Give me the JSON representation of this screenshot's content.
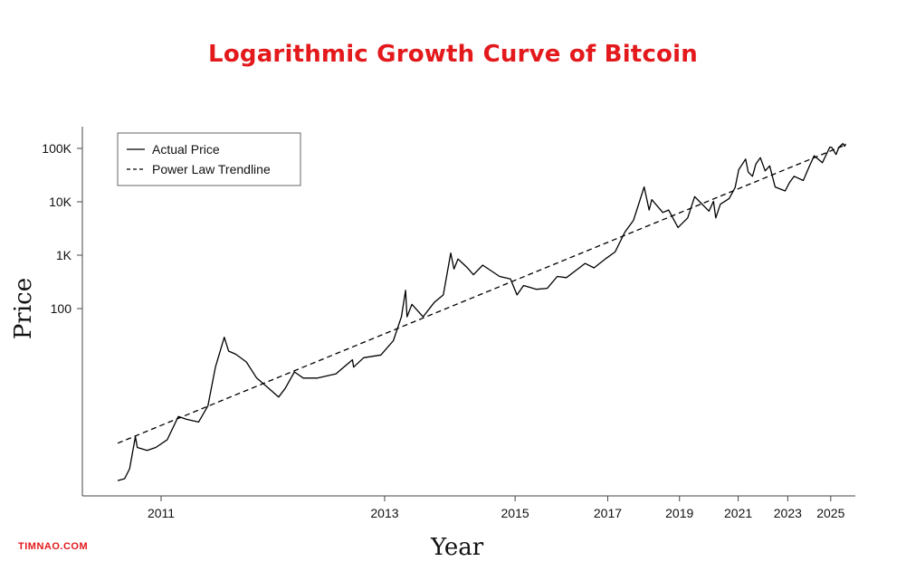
{
  "watermark": "TIMNAO.COM",
  "chart_data": {
    "type": "line",
    "title": "Logarithmic Growth Curve of Bitcoin",
    "xlabel": "Year",
    "ylabel": "Price",
    "x_scale": "log (time since 2009-01-03)",
    "y_scale": "log",
    "x_ticks": [
      "2011",
      "2013",
      "2015",
      "2017",
      "2019",
      "2021",
      "2023",
      "2025"
    ],
    "y_ticks": [
      {
        "label": "100",
        "value": 100
      },
      {
        "label": "1K",
        "value": 1000
      },
      {
        "label": "10K",
        "value": 10000
      },
      {
        "label": "100K",
        "value": 100000
      }
    ],
    "grid": false,
    "legend": {
      "placement": "top-left",
      "entries": [
        "Actual Price",
        "Power Law Trendline"
      ]
    },
    "series": [
      {
        "name": "Actual Price",
        "style": "solid",
        "color": "#000000",
        "points": [
          [
            "2010-10-01",
            0.06
          ],
          [
            "2010-10-15",
            0.065
          ],
          [
            "2010-10-25",
            0.1
          ],
          [
            "2010-11-06",
            0.4
          ],
          [
            "2010-11-10",
            0.25
          ],
          [
            "2010-12-01",
            0.22
          ],
          [
            "2010-12-20",
            0.25
          ],
          [
            "2011-01-15",
            0.35
          ],
          [
            "2011-02-10",
            0.95
          ],
          [
            "2011-03-01",
            0.85
          ],
          [
            "2011-04-01",
            0.75
          ],
          [
            "2011-04-25",
            1.5
          ],
          [
            "2011-05-15",
            8
          ],
          [
            "2011-06-08",
            29
          ],
          [
            "2011-06-20",
            16
          ],
          [
            "2011-07-10",
            14
          ],
          [
            "2011-08-10",
            10
          ],
          [
            "2011-09-10",
            5
          ],
          [
            "2011-10-10",
            3.5
          ],
          [
            "2011-11-18",
            2.2
          ],
          [
            "2011-12-10",
            3.2
          ],
          [
            "2012-01-10",
            6.5
          ],
          [
            "2012-02-10",
            5
          ],
          [
            "2012-04-01",
            5
          ],
          [
            "2012-06-10",
            6
          ],
          [
            "2012-08-15",
            11
          ],
          [
            "2012-08-20",
            8
          ],
          [
            "2012-10-01",
            12
          ],
          [
            "2012-12-15",
            13.5
          ],
          [
            "2013-02-10",
            25
          ],
          [
            "2013-03-20",
            70
          ],
          [
            "2013-04-09",
            220
          ],
          [
            "2013-04-16",
            70
          ],
          [
            "2013-05-10",
            120
          ],
          [
            "2013-07-05",
            70
          ],
          [
            "2013-09-01",
            130
          ],
          [
            "2013-10-20",
            180
          ],
          [
            "2013-11-30",
            1100
          ],
          [
            "2013-12-18",
            550
          ],
          [
            "2014-01-10",
            850
          ],
          [
            "2014-03-01",
            600
          ],
          [
            "2014-04-10",
            430
          ],
          [
            "2014-06-05",
            650
          ],
          [
            "2014-09-20",
            400
          ],
          [
            "2014-12-01",
            360
          ],
          [
            "2015-01-14",
            180
          ],
          [
            "2015-03-01",
            270
          ],
          [
            "2015-06-01",
            230
          ],
          [
            "2015-08-20",
            240
          ],
          [
            "2015-11-04",
            400
          ],
          [
            "2016-01-15",
            380
          ],
          [
            "2016-06-16",
            700
          ],
          [
            "2016-09-01",
            580
          ],
          [
            "2016-12-20",
            880
          ],
          [
            "2017-03-10",
            1150
          ],
          [
            "2017-06-10",
            2700
          ],
          [
            "2017-09-01",
            4500
          ],
          [
            "2017-12-17",
            19000
          ],
          [
            "2018-02-06",
            7000
          ],
          [
            "2018-03-05",
            11000
          ],
          [
            "2018-06-30",
            6300
          ],
          [
            "2018-09-01",
            7000
          ],
          [
            "2018-12-15",
            3300
          ],
          [
            "2019-04-05",
            5000
          ],
          [
            "2019-06-26",
            12500
          ],
          [
            "2019-09-01",
            9800
          ],
          [
            "2019-12-17",
            6700
          ],
          [
            "2020-02-12",
            10200
          ],
          [
            "2020-03-12",
            5000
          ],
          [
            "2020-05-10",
            9000
          ],
          [
            "2020-09-01",
            11500
          ],
          [
            "2020-11-20",
            18500
          ],
          [
            "2021-01-08",
            40000
          ],
          [
            "2021-04-14",
            63000
          ],
          [
            "2021-05-20",
            36000
          ],
          [
            "2021-07-20",
            30000
          ],
          [
            "2021-09-06",
            51000
          ],
          [
            "2021-11-10",
            67000
          ],
          [
            "2022-01-20",
            38000
          ],
          [
            "2022-03-28",
            47000
          ],
          [
            "2022-06-18",
            19000
          ],
          [
            "2022-11-21",
            16000
          ],
          [
            "2023-01-30",
            23000
          ],
          [
            "2023-04-14",
            30000
          ],
          [
            "2023-09-11",
            25000
          ],
          [
            "2023-12-10",
            43000
          ],
          [
            "2024-03-14",
            73000
          ],
          [
            "2024-08-05",
            54000
          ],
          [
            "2024-12-17",
            106000
          ],
          [
            "2025-01-20",
            104000
          ],
          [
            "2025-04-08",
            77000
          ],
          [
            "2025-06-01",
            105000
          ],
          [
            "2025-08-14",
            123000
          ],
          [
            "2025-09-20",
            110000
          ],
          [
            "2025-10-05",
            122000
          ]
        ]
      },
      {
        "name": "Power Law Trendline",
        "style": "dashed",
        "color": "#000000",
        "points": [
          [
            "2010-10-01",
            0.3
          ],
          [
            "2025-10-05",
            117000
          ]
        ]
      }
    ]
  }
}
